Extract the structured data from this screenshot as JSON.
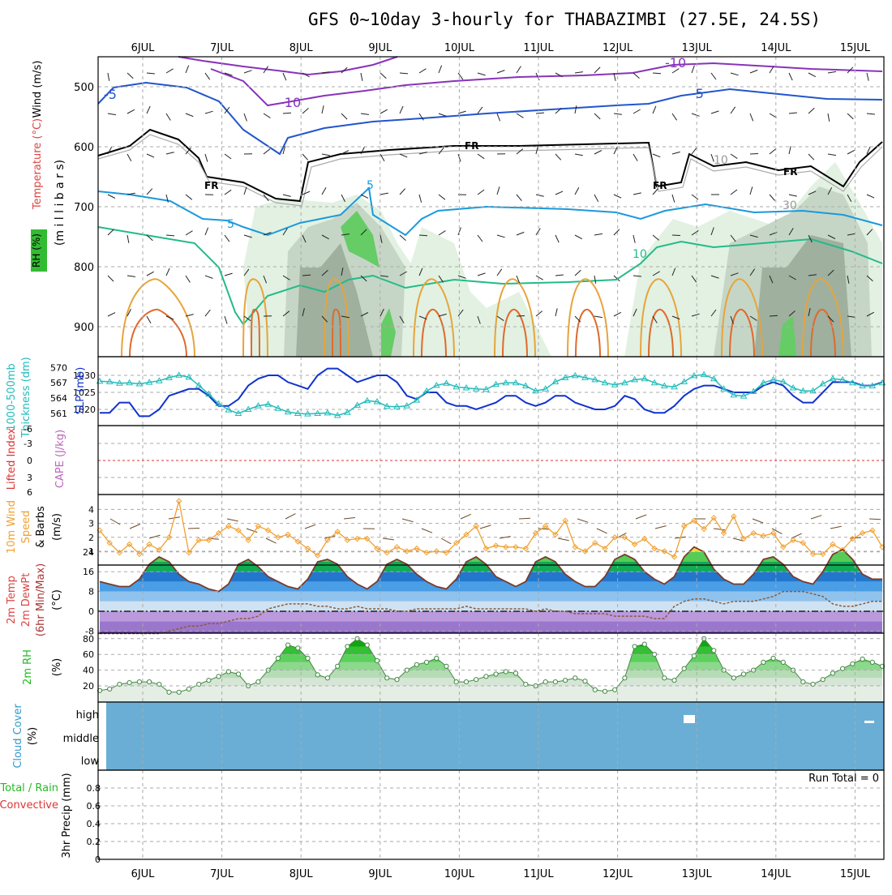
{
  "title": "GFS 0~10day 3-hourly for THABAZIMBI (27.5E, 24.5S)",
  "dates": [
    "6JUL",
    "7JUL",
    "8JUL",
    "9JUL",
    "10JUL",
    "11JUL",
    "12JUL",
    "13JUL",
    "14JUL",
    "15JUL"
  ],
  "chart_data": [
    {
      "panel": "upper-air",
      "type": "heatmap",
      "ylabel": "(millibars)",
      "side_labels": [
        "Wind (m/s)",
        "Temperature (°C)",
        "RH (%)"
      ],
      "yticks": [
        500,
        600,
        700,
        800,
        900
      ],
      "ylim": [
        1000,
        450
      ],
      "contour_labels": [
        "-10",
        "-10",
        "-5",
        "-5",
        "FR",
        "FR",
        "FR",
        "FR",
        "5",
        "5",
        "10",
        "10",
        "30"
      ]
    },
    {
      "panel": "pressure-thickness",
      "type": "line",
      "ylabel_left": "1000-500mb Thickness (dm)",
      "ylabel_right": "SLP (mb)",
      "yticks_left": [
        561,
        564,
        567,
        570
      ],
      "yticks_right": [
        1020,
        1025,
        1030
      ],
      "series": [
        {
          "name": "SLP (mb)",
          "color": "#1133cc",
          "values": [
            1019,
            1019,
            1022,
            1022,
            1018,
            1018,
            1020,
            1024,
            1025,
            1026,
            1026,
            1024,
            1021,
            1021,
            1023,
            1027,
            1029,
            1030,
            1030,
            1028,
            1027,
            1026,
            1030,
            1032,
            1032,
            1030,
            1028,
            1029,
            1030,
            1030,
            1028,
            1024,
            1023,
            1025,
            1025,
            1022,
            1021,
            1021,
            1020,
            1021,
            1022,
            1024,
            1024,
            1022,
            1021,
            1022,
            1024,
            1024,
            1022,
            1021,
            1020,
            1020,
            1021,
            1024,
            1023,
            1020,
            1019,
            1019,
            1021,
            1024,
            1026,
            1027,
            1027,
            1026,
            1025,
            1025,
            1025,
            1027,
            1028,
            1027,
            1024,
            1022,
            1022,
            1025,
            1028,
            1028,
            1028,
            1027,
            1027,
            1028
          ]
        },
        {
          "name": "1000-500mb Thickness (dm)",
          "color": "#22bbbb",
          "values": [
            567.3,
            567.2,
            566.9,
            567.0,
            566.8,
            567.1,
            567.4,
            568.0,
            568.5,
            568.1,
            566.5,
            564.8,
            562.9,
            561.7,
            561.0,
            561.8,
            562.5,
            562.8,
            562.0,
            561.3,
            561.0,
            560.9,
            561.0,
            561.1,
            560.6,
            561.2,
            562.6,
            563.5,
            563.3,
            562.4,
            562.3,
            562.5,
            563.6,
            565.4,
            566.5,
            566.9,
            566.2,
            566.0,
            565.8,
            565.7,
            566.7,
            567.0,
            567.0,
            566.4,
            565.4,
            565.8,
            567.2,
            568.0,
            568.4,
            568.0,
            567.6,
            567.0,
            566.6,
            567.0,
            567.6,
            567.8,
            567.0,
            566.4,
            566.2,
            567.2,
            568.4,
            568.6,
            567.8,
            565.8,
            564.6,
            564.4,
            565.3,
            567.0,
            567.6,
            567.2,
            566.0,
            565.4,
            565.4,
            566.8,
            567.8,
            567.6,
            567.0,
            566.4,
            566.4,
            567.0
          ]
        }
      ]
    },
    {
      "panel": "cape-li",
      "type": "line",
      "ylabel": "Lifted Index / CAPE (J/kg)",
      "yticks": [
        "-6",
        "-3",
        "0",
        "3",
        "6"
      ],
      "series": []
    },
    {
      "panel": "wind-10m",
      "type": "line",
      "ylabel": "10m Wind Speed & Barbs (m/s)",
      "yticks": [
        1,
        2,
        3,
        4
      ],
      "series": [
        {
          "name": "10m Wind Speed",
          "color": "#f0a030",
          "values": [
            2.5,
            1.6,
            0.9,
            1.5,
            0.8,
            1.5,
            1.1,
            2.0,
            4.6,
            0.9,
            1.8,
            1.8,
            2.3,
            2.8,
            2.5,
            1.8,
            2.8,
            2.5,
            2.0,
            2.2,
            1.7,
            1.2,
            0.7,
            1.8,
            2.4,
            1.8,
            1.9,
            1.9,
            1.2,
            0.9,
            1.3,
            1.0,
            1.2,
            0.9,
            1.0,
            0.9,
            1.6,
            2.2,
            2.8,
            1.2,
            1.4,
            1.3,
            1.3,
            1.2,
            2.3,
            2.8,
            2.2,
            3.2,
            1.3,
            1.0,
            1.6,
            1.2,
            2.0,
            2.0,
            1.5,
            1.9,
            1.2,
            1.0,
            0.6,
            2.8,
            3.2,
            2.6,
            3.4,
            2.3,
            3.5,
            1.9,
            2.3,
            2.1,
            2.3,
            1.3,
            1.8,
            1.6,
            0.8,
            0.8,
            1.5,
            1.1,
            1.9,
            2.3,
            2.5,
            1.3
          ]
        }
      ]
    },
    {
      "panel": "temperature",
      "type": "area",
      "ylabel": "2m Temp / 2m DewPt / (6hr Min/Max) (°C)",
      "yticks": [
        -8,
        0,
        8,
        16,
        24
      ],
      "series": [
        {
          "name": "2m Temp",
          "values": [
            12,
            11,
            10,
            10,
            13,
            19,
            22,
            20,
            15,
            12,
            11,
            9,
            8,
            11,
            19,
            21,
            18,
            14,
            12,
            10,
            9,
            13,
            20,
            21,
            19,
            14,
            11,
            9,
            12,
            19,
            21,
            19,
            15,
            12,
            10,
            9,
            13,
            20,
            22,
            19,
            14,
            12,
            10,
            12,
            20,
            22,
            20,
            15,
            12,
            10,
            10,
            14,
            21,
            23,
            21,
            16,
            13,
            11,
            14,
            22,
            26,
            24,
            17,
            13,
            11,
            11,
            15,
            21,
            22,
            19,
            14,
            12,
            11,
            16,
            23,
            25,
            21,
            15,
            13,
            13
          ]
        },
        {
          "name": "2m DewPt",
          "values": [
            -9,
            -9,
            -9,
            -9,
            -9,
            -9,
            -9,
            -8,
            -7,
            -6,
            -6,
            -5,
            -5,
            -4,
            -3,
            -3,
            -2,
            1,
            2,
            3,
            3,
            3,
            2,
            2,
            1,
            1,
            2,
            1,
            1,
            1,
            0,
            0,
            1,
            1,
            1,
            1,
            1,
            2,
            1,
            1,
            1,
            1,
            1,
            1,
            0,
            1,
            0,
            0,
            -1,
            -1,
            -1,
            -1,
            -2,
            -2,
            -2,
            -2,
            -3,
            -3,
            2,
            4,
            5,
            5,
            4,
            3,
            4,
            4,
            4,
            5,
            6,
            8,
            8,
            8,
            7,
            6,
            3,
            2,
            2,
            3,
            4,
            4
          ]
        }
      ]
    },
    {
      "panel": "rh-2m",
      "type": "area",
      "ylabel": "2m RH (%)",
      "yticks": [
        20,
        40,
        60,
        80
      ],
      "series": [
        {
          "name": "2m RH",
          "values": [
            14,
            16,
            22,
            24,
            25,
            25,
            22,
            12,
            12,
            16,
            22,
            27,
            32,
            38,
            35,
            20,
            25,
            40,
            55,
            72,
            68,
            55,
            34,
            30,
            45,
            70,
            80,
            72,
            52,
            30,
            28,
            40,
            47,
            50,
            55,
            45,
            25,
            25,
            28,
            32,
            35,
            38,
            36,
            22,
            20,
            25,
            25,
            27,
            30,
            26,
            15,
            13,
            15,
            30,
            70,
            73,
            60,
            30,
            27,
            42,
            58,
            80,
            65,
            40,
            30,
            35,
            40,
            50,
            55,
            50,
            40,
            25,
            22,
            28,
            36,
            42,
            48,
            54,
            50,
            45
          ]
        }
      ]
    },
    {
      "panel": "cloud-cover",
      "type": "heatmap",
      "ylabel": "Cloud Cover (%)",
      "levels": [
        "high",
        "middle",
        "low"
      ]
    },
    {
      "panel": "precip",
      "type": "bar",
      "ylabel": "3hr Precip (mm)",
      "legend": [
        "Total / Rain",
        "Convective"
      ],
      "yticks": [
        "0",
        "0.2",
        "0.4",
        "0.6",
        "0.8"
      ],
      "ylim": [
        0,
        0.9
      ],
      "run_total": "Run Total = 0",
      "values": []
    }
  ],
  "labels": {
    "wind": "Wind (m/s)",
    "temperature": "Temperature (°C)",
    "rh": "RH (%)",
    "millibars": "(m i l l i b a r s)",
    "thickness_a": "1000-500mb",
    "thickness_b": "Thickness (dm)",
    "slp": "SLP (mb)",
    "lifted_index": "Lifted Index",
    "cape": "CAPE (J/kg)",
    "wind10_a": "10m Wind",
    "wind10_b": "Speed",
    "wind10_c": "& Barbs",
    "wind10_unit": "(m/s)",
    "temp_a": "2m Temp",
    "temp_b": "2m DewPt",
    "temp_c": "(6hr Min/Max)",
    "temp_unit": "(°C)",
    "rh2m": "2m RH",
    "rh2m_unit": "(%)",
    "cloud": "Cloud Cover",
    "cloud_unit": "(%)",
    "precip_a": "Total / Rain",
    "precip_b": "Convective",
    "precip_c": "3hr Precip (mm)",
    "run_total": "Run Total = 0"
  },
  "colors": {
    "frame": "#000000",
    "grid": "#aaaaaa",
    "cloud": "#6aaed6",
    "slp": "#1133cc",
    "thickness": "#22bbbb",
    "wind10": "#f0a030",
    "rh_green": "#22cc22",
    "li_zero": "#dd3333"
  }
}
